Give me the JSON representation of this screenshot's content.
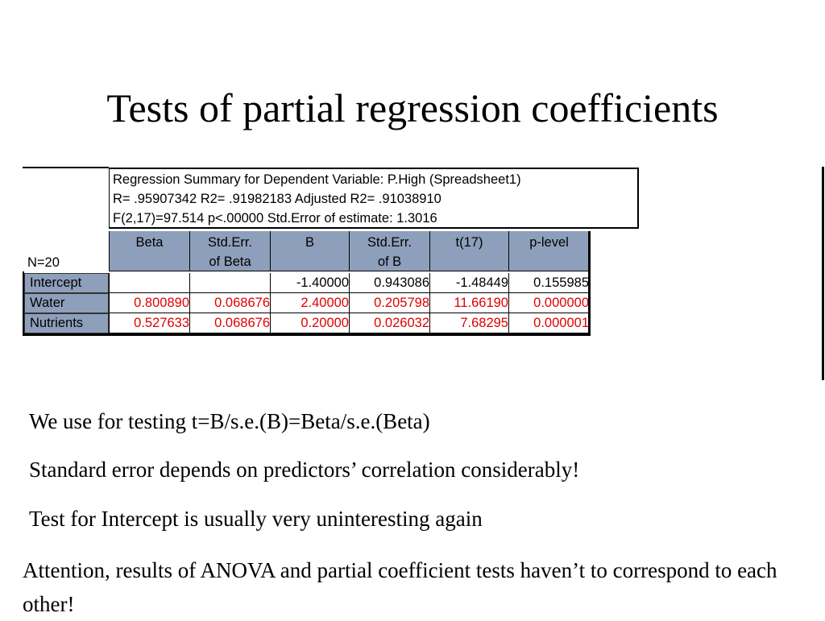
{
  "title": "Tests of partial regression coefficients",
  "summary": {
    "line1": "Regression Summary for Dependent Variable: P.High (Spreadsheet1)",
    "line2": "R= .95907342 R2= .91982183 Adjusted R2= .91038910",
    "line3": "F(2,17)=97.514 p<.00000 Std.Error of estimate: 1.3016"
  },
  "n_label": "N=20",
  "headers": [
    {
      "line1": "Beta",
      "line2": ""
    },
    {
      "line1": "Std.Err.",
      "line2": "of Beta"
    },
    {
      "line1": "B",
      "line2": ""
    },
    {
      "line1": "Std.Err.",
      "line2": "of B"
    },
    {
      "line1": "t(17)",
      "line2": ""
    },
    {
      "line1": "p-level",
      "line2": ""
    }
  ],
  "rows": [
    {
      "label": "Intercept",
      "cells": [
        "",
        "",
        "-1.40000",
        "0.943086",
        "-1.48449",
        "0.155985"
      ]
    },
    {
      "label": "Water",
      "cells": [
        "0.800890",
        "0.068676",
        "2.40000",
        "0.205798",
        "11.66190",
        "0.000000"
      ]
    },
    {
      "label": "Nutrients",
      "cells": [
        "0.527633",
        "0.068676",
        "0.20000",
        "0.026032",
        "7.68295",
        "0.000001"
      ]
    }
  ],
  "colors": {
    "header_bg": "#8e9fbb",
    "significant": "#e00000"
  },
  "paragraphs": [
    "We use for testing t=B/s.e.(B)=Beta/s.e.(Beta)",
    "Standard error depends on predictors’ correlation considerably!",
    "Test for Intercept is usually very uninteresting again"
  ],
  "final_paragraph": "Attention, results of ANOVA and partial coefficient tests haven’t to correspond to each other!"
}
